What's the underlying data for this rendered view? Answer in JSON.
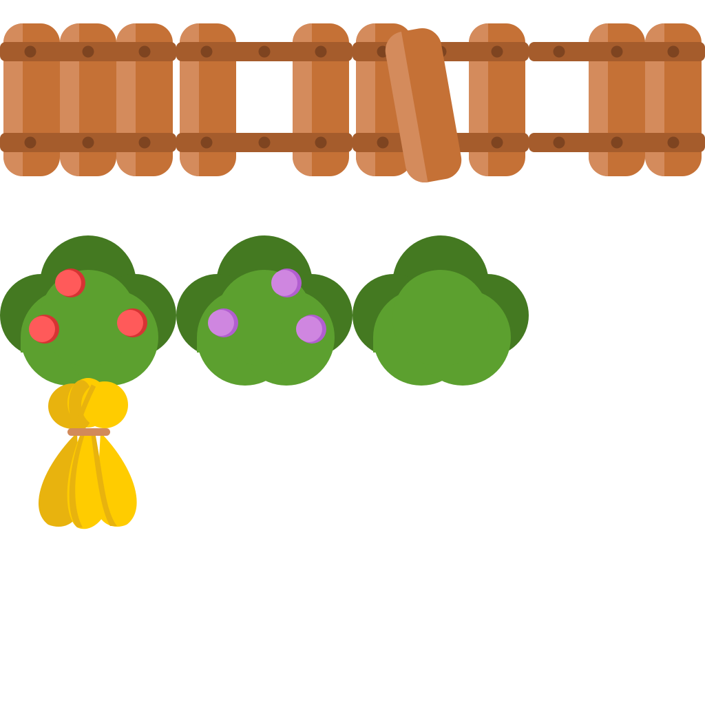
{
  "sheet": {
    "title": "",
    "colors": {
      "background": "#ffffff",
      "wood_main": "#c57136",
      "wood_light": "#d48b5c",
      "wood_rail": "#a55c2c",
      "wood_bolt": "#7e4420",
      "bush_dark": "#447921",
      "bush_light": "#5ca02f",
      "berry_red": "#ff5a5a",
      "berry_red_shade": "#d63333",
      "berry_purple": "#cf86e0",
      "berry_purple_shade": "#b15ed0",
      "hay_main": "#ffcc00",
      "hay_shade": "#e8b30e",
      "hay_tie": "#d28a5a"
    },
    "fences": [
      {
        "name": "fence-full",
        "pickets": [
          true,
          true,
          true
        ]
      },
      {
        "name": "fence-gap-middle",
        "pickets": [
          true,
          false,
          true
        ]
      },
      {
        "name": "fence-broken",
        "pickets": [
          true,
          "tilted",
          true
        ]
      },
      {
        "name": "fence-gap-left",
        "pickets": [
          false,
          true,
          true
        ]
      }
    ],
    "bushes": [
      {
        "name": "bush-red-berries",
        "berries": "red",
        "berry_count": 3
      },
      {
        "name": "bush-purple-berries",
        "berries": "purple",
        "berry_count": 3
      },
      {
        "name": "bush-plain",
        "berries": "none",
        "berry_count": 0
      }
    ],
    "items": [
      {
        "name": "hay-bundle",
        "icon": "hay-bundle-icon"
      }
    ]
  }
}
